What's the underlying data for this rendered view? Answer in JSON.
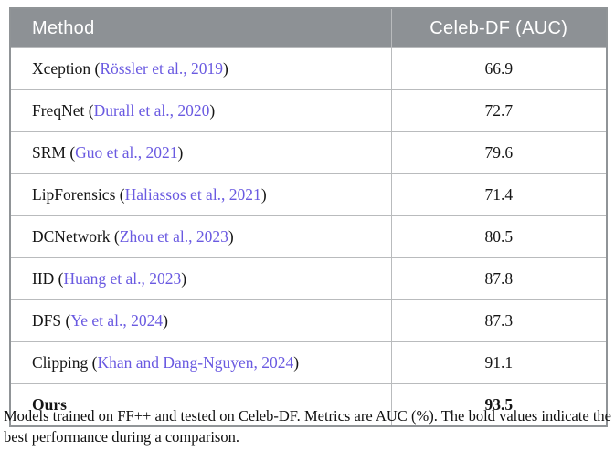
{
  "table": {
    "header": {
      "method_label": "Method",
      "metric_label": "Celeb-DF (AUC)"
    },
    "citation_wrap": {
      "open": " (",
      "close": ")"
    },
    "rows": [
      {
        "method": "Xception",
        "citation": "Rössler et al., 2019",
        "value": "66.9",
        "bold": false
      },
      {
        "method": "FreqNet",
        "citation": "Durall et al., 2020",
        "value": "72.7",
        "bold": false
      },
      {
        "method": "SRM",
        "citation": "Guo et al., 2021",
        "value": "79.6",
        "bold": false
      },
      {
        "method": "LipForensics",
        "citation": "Haliassos et al., 2021",
        "value": "71.4",
        "bold": false
      },
      {
        "method": "DCNetwork",
        "citation": "Zhou et al., 2023",
        "value": "80.5",
        "bold": false
      },
      {
        "method": "IID",
        "citation": "Huang et al., 2023",
        "value": "87.8",
        "bold": false
      },
      {
        "method": "DFS",
        "citation": "Ye et al., 2024",
        "value": "87.3",
        "bold": false
      },
      {
        "method": "Clipping",
        "citation": "Khan and Dang-Nguyen, 2024",
        "value": "91.1",
        "bold": false
      },
      {
        "method": "Ours",
        "citation": null,
        "value": "93.5",
        "bold": true
      }
    ]
  },
  "caption": "Models trained on FF++ and tested on Celeb-DF. Metrics are AUC (%). The bold values indicate the best performance during a comparison.",
  "colors": {
    "header_bg": "#8d9195",
    "header_text": "#ffffff",
    "link": "#6a5ae1",
    "inner_border": "#b9bbbd",
    "outer_border": "#909497",
    "body_text": "#151515"
  }
}
